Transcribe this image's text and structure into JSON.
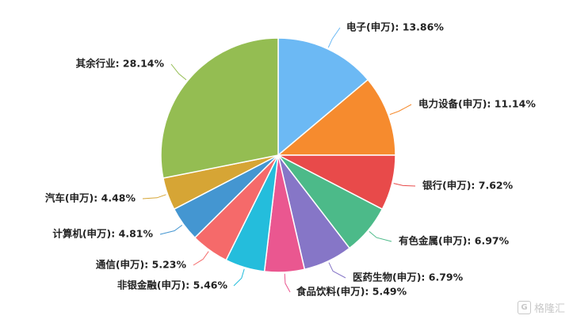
{
  "chart_data": {
    "type": "pie",
    "categories": [
      "电子(申万)",
      "电力设备(申万)",
      "银行(申万)",
      "有色金属(申万)",
      "医药生物(申万)",
      "食品饮料(申万)",
      "非银金融(申万)",
      "通信(申万)",
      "计算机(申万)",
      "汽车(申万)",
      "其余行业"
    ],
    "values": [
      13.86,
      11.14,
      7.62,
      6.97,
      6.79,
      5.49,
      5.46,
      5.23,
      4.81,
      4.48,
      28.14
    ],
    "labels": [
      "电子(申万): 13.86%",
      "电力设备(申万): 11.14%",
      "银行(申万): 7.62%",
      "有色金属(申万): 6.97%",
      "医药生物(申万): 6.79%",
      "食品饮料(申万): 5.49%",
      "非银金融(申万): 5.46%",
      "通信(申万): 5.23%",
      "计算机(申万): 4.81%",
      "汽车(申万): 4.48%",
      "其余行业: 28.14%"
    ],
    "colors": [
      "#6cb9f4",
      "#f68b2e",
      "#e84a4a",
      "#4cba89",
      "#8676c7",
      "#ea5790",
      "#24bddc",
      "#f56a6a",
      "#4496d1",
      "#d6a535",
      "#94bd52"
    ],
    "legend": "none"
  },
  "watermark": {
    "text": "格隆汇",
    "icon": "g-logo-icon"
  }
}
